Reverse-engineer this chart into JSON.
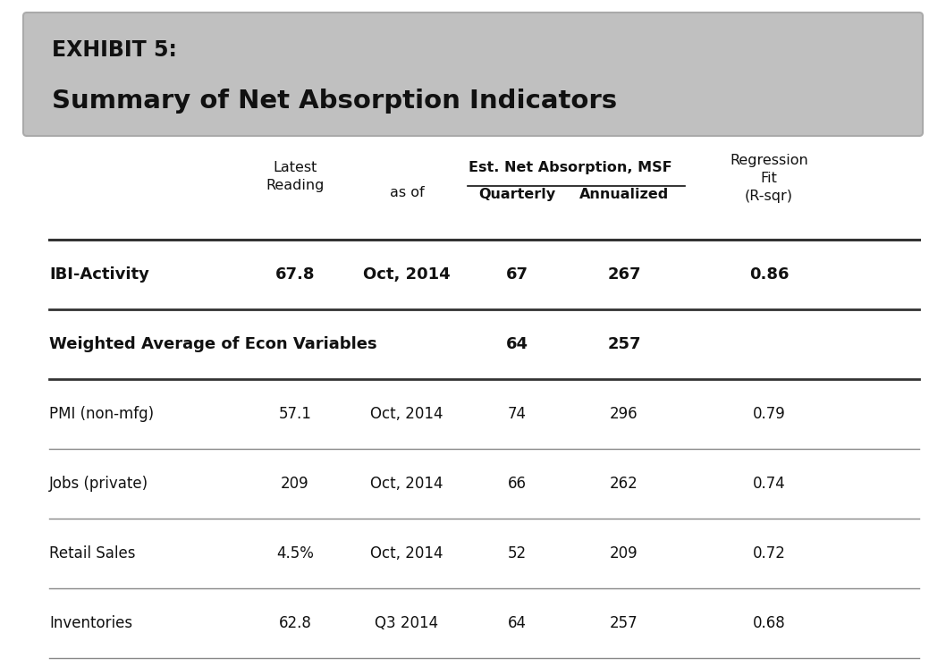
{
  "title_line1": "EXHIBIT 5:",
  "title_line2": "Summary of Net Absorption Indicators",
  "rows": [
    {
      "label": "IBI-Activity",
      "latest": "67.8",
      "as_of": "Oct, 2014",
      "quarterly": "67",
      "annualized": "267",
      "rsqr": "0.86",
      "bold": true,
      "separator_below": true,
      "sep_heavy": true
    },
    {
      "label": "Weighted Average of Econ Variables",
      "latest": "",
      "as_of": "",
      "quarterly": "64",
      "annualized": "257",
      "rsqr": "",
      "bold": true,
      "separator_below": true,
      "sep_heavy": true
    },
    {
      "label": "PMI (non-mfg)",
      "latest": "57.1",
      "as_of": "Oct, 2014",
      "quarterly": "74",
      "annualized": "296",
      "rsqr": "0.79",
      "bold": false,
      "separator_below": true,
      "sep_heavy": false
    },
    {
      "label": "Jobs (private)",
      "latest": "209",
      "as_of": "Oct, 2014",
      "quarterly": "66",
      "annualized": "262",
      "rsqr": "0.74",
      "bold": false,
      "separator_below": true,
      "sep_heavy": false
    },
    {
      "label": "Retail Sales",
      "latest": "4.5%",
      "as_of": "Oct, 2014",
      "quarterly": "52",
      "annualized": "209",
      "rsqr": "0.72",
      "bold": false,
      "separator_below": true,
      "sep_heavy": false
    },
    {
      "label": "Inventories",
      "latest": "62.8",
      "as_of": "Q3 2014",
      "quarterly": "64",
      "annualized": "257",
      "rsqr": "0.68",
      "bold": false,
      "separator_below": true,
      "sep_heavy": false
    }
  ],
  "bg_color_header": "#c0c0c0",
  "text_color": "#444444",
  "title_color": "#111111",
  "figure_bg": "#ffffff",
  "fig_w": 10.58,
  "fig_h": 7.46,
  "dpi": 100
}
